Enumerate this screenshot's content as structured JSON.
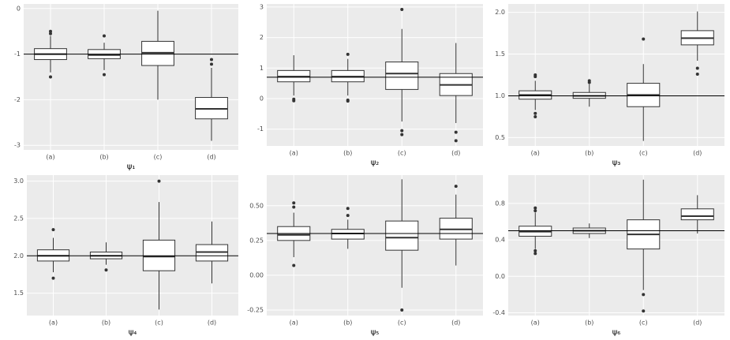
{
  "chart_data": [
    {
      "type": "box",
      "xlabel": "ψ₁",
      "categories": [
        "(a)",
        "(b)",
        "(c)",
        "(d)"
      ],
      "ylim": [
        -3.1,
        0.1
      ],
      "yticks": [
        0,
        -1,
        -2,
        -3
      ],
      "hline": -1,
      "grid": true,
      "boxes": [
        {
          "low": -1.4,
          "q1": -1.12,
          "median": -1.0,
          "q3": -0.88,
          "high": -0.6,
          "outliers": [
            -0.5,
            -0.55,
            -1.5
          ]
        },
        {
          "low": -1.35,
          "q1": -1.1,
          "median": -1.02,
          "q3": -0.9,
          "high": -0.75,
          "outliers": [
            -0.6,
            -1.45
          ]
        },
        {
          "low": -2.0,
          "q1": -1.25,
          "median": -0.97,
          "q3": -0.72,
          "high": -0.05,
          "outliers": []
        },
        {
          "low": -2.9,
          "q1": -2.42,
          "median": -2.2,
          "q3": -1.95,
          "high": -1.3,
          "outliers": [
            -1.12,
            -1.22
          ]
        }
      ]
    },
    {
      "type": "box",
      "xlabel": "ψ₂",
      "categories": [
        "(a)",
        "(b)",
        "(c)",
        "(d)"
      ],
      "ylim": [
        -1.55,
        3.1
      ],
      "yticks": [
        3,
        2,
        1,
        0,
        -1
      ],
      "hline": 0.7,
      "grid": true,
      "boxes": [
        {
          "low": 0.1,
          "q1": 0.55,
          "median": 0.72,
          "q3": 0.92,
          "high": 1.42,
          "outliers": [
            -0.02,
            -0.07
          ]
        },
        {
          "low": 0.1,
          "q1": 0.55,
          "median": 0.72,
          "q3": 0.92,
          "high": 1.3,
          "outliers": [
            1.45,
            -0.05,
            -0.08
          ]
        },
        {
          "low": -0.75,
          "q1": 0.3,
          "median": 0.82,
          "q3": 1.2,
          "high": 2.28,
          "outliers": [
            2.92,
            -1.05,
            -1.18
          ]
        },
        {
          "low": -0.8,
          "q1": 0.1,
          "median": 0.45,
          "q3": 0.82,
          "high": 1.82,
          "outliers": [
            -1.1,
            -1.38
          ]
        }
      ]
    },
    {
      "type": "box",
      "xlabel": "ψ₃",
      "categories": [
        "(a)",
        "(b)",
        "(c)",
        "(d)"
      ],
      "ylim": [
        0.4,
        2.1
      ],
      "yticks": [
        {
          "value": 2,
          "label": "2.0"
        },
        1.5,
        {
          "value": 1,
          "label": "1.0"
        },
        0.5
      ],
      "hline": 1,
      "grid": true,
      "boxes": [
        {
          "low": 0.83,
          "q1": 0.96,
          "median": 1.01,
          "q3": 1.06,
          "high": 1.18,
          "outliers": [
            1.23,
            1.25,
            0.79,
            0.75
          ]
        },
        {
          "low": 0.87,
          "q1": 0.97,
          "median": 1.0,
          "q3": 1.04,
          "high": 1.14,
          "outliers": [
            1.16,
            1.18
          ]
        },
        {
          "low": 0.46,
          "q1": 0.87,
          "median": 1.01,
          "q3": 1.15,
          "high": 1.38,
          "outliers": [
            1.68
          ]
        },
        {
          "low": 1.42,
          "q1": 1.61,
          "median": 1.69,
          "q3": 1.78,
          "high": 2.01,
          "outliers": [
            1.33,
            1.26
          ]
        }
      ]
    },
    {
      "type": "box",
      "xlabel": "ψ₄",
      "categories": [
        "(a)",
        "(b)",
        "(c)",
        "(d)"
      ],
      "ylim": [
        1.2,
        3.08
      ],
      "yticks": [
        {
          "value": 3,
          "label": "3.0"
        },
        2.5,
        {
          "value": 2,
          "label": "2.0"
        },
        1.5
      ],
      "hline": 2,
      "grid": true,
      "boxes": [
        {
          "low": 1.78,
          "q1": 1.93,
          "median": 2.0,
          "q3": 2.08,
          "high": 2.24,
          "outliers": [
            2.35,
            1.7
          ]
        },
        {
          "low": 1.88,
          "q1": 1.96,
          "median": 2.0,
          "q3": 2.05,
          "high": 2.18,
          "outliers": [
            1.81
          ]
        },
        {
          "low": 1.28,
          "q1": 1.8,
          "median": 1.99,
          "q3": 2.21,
          "high": 2.72,
          "outliers": [
            3.0
          ]
        },
        {
          "low": 1.63,
          "q1": 1.93,
          "median": 2.05,
          "q3": 2.15,
          "high": 2.46,
          "outliers": []
        }
      ]
    },
    {
      "type": "box",
      "xlabel": "ψ₅",
      "categories": [
        "(a)",
        "(b)",
        "(c)",
        "(d)"
      ],
      "ylim": [
        -0.29,
        0.72
      ],
      "yticks": [
        {
          "value": 0.5,
          "label": "0.50"
        },
        0.25,
        {
          "value": 0,
          "label": "0.00"
        },
        -0.25
      ],
      "hline": 0.3,
      "grid": true,
      "boxes": [
        {
          "low": 0.13,
          "q1": 0.25,
          "median": 0.29,
          "q3": 0.35,
          "high": 0.45,
          "outliers": [
            0.52,
            0.49,
            0.07
          ]
        },
        {
          "low": 0.19,
          "q1": 0.26,
          "median": 0.3,
          "q3": 0.33,
          "high": 0.4,
          "outliers": [
            0.48,
            0.43
          ]
        },
        {
          "low": -0.09,
          "q1": 0.18,
          "median": 0.27,
          "q3": 0.39,
          "high": 0.69,
          "outliers": [
            -0.25
          ]
        },
        {
          "low": 0.07,
          "q1": 0.26,
          "median": 0.33,
          "q3": 0.41,
          "high": 0.58,
          "outliers": [
            0.64
          ]
        }
      ]
    },
    {
      "type": "box",
      "xlabel": "ψ₆",
      "categories": [
        "(a)",
        "(b)",
        "(c)",
        "(d)"
      ],
      "ylim": [
        -0.43,
        1.11
      ],
      "yticks": [
        0.8,
        0.4,
        {
          "value": 0,
          "label": "0.0"
        },
        -0.4
      ],
      "hline": 0.5,
      "grid": true,
      "boxes": [
        {
          "low": 0.3,
          "q1": 0.44,
          "median": 0.49,
          "q3": 0.55,
          "high": 0.7,
          "outliers": [
            0.75,
            0.72,
            0.28,
            0.25
          ]
        },
        {
          "low": 0.42,
          "q1": 0.47,
          "median": 0.5,
          "q3": 0.53,
          "high": 0.58,
          "outliers": []
        },
        {
          "low": -0.15,
          "q1": 0.3,
          "median": 0.46,
          "q3": 0.62,
          "high": 1.06,
          "outliers": [
            -0.2,
            -0.38
          ]
        },
        {
          "low": 0.47,
          "q1": 0.62,
          "median": 0.66,
          "q3": 0.74,
          "high": 0.89,
          "outliers": []
        }
      ]
    }
  ]
}
